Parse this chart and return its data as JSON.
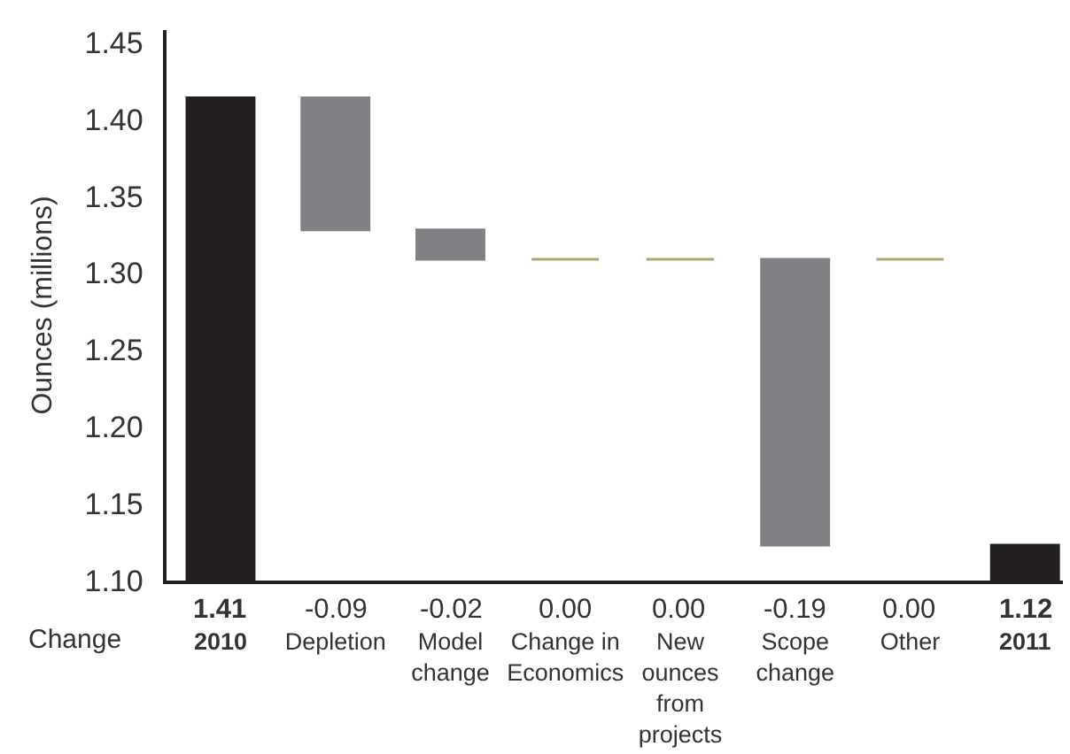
{
  "chart_data": {
    "type": "bar",
    "ylabel": "Ounces (millions)",
    "categories": [
      "2010",
      "Depletion",
      "Model change",
      "Change in Economics",
      "New ounces from projects",
      "Scope change",
      "Other",
      "2011"
    ],
    "values": [
      1.414,
      -0.086,
      -0.019,
      0,
      0,
      -0.186,
      0,
      1.123
    ],
    "base": [
      null,
      1.414,
      1.328,
      1.309,
      1.309,
      1.309,
      1.309,
      null
    ],
    "colors": [
      "#231f20",
      "#808184",
      "#808184",
      "#b5a26e",
      "#b5a26e",
      "#808184",
      "#b5a26e",
      "#231f20"
    ],
    "value_labels": [
      "1.41",
      "-0.09",
      "-0.02",
      "0.00",
      "0.00",
      "-0.19",
      "0.00",
      "1.12"
    ],
    "ylim": [
      1.1,
      1.458
    ],
    "yticks": [
      {
        "value": 1.1,
        "label": "1.10"
      },
      1.15,
      {
        "value": 1.2,
        "label": "1.20"
      },
      1.25,
      {
        "value": 1.3,
        "label": "1.30"
      },
      1.35,
      {
        "value": 1.4,
        "label": "1.40"
      },
      1.45
    ],
    "annotations": [
      "Change"
    ]
  }
}
